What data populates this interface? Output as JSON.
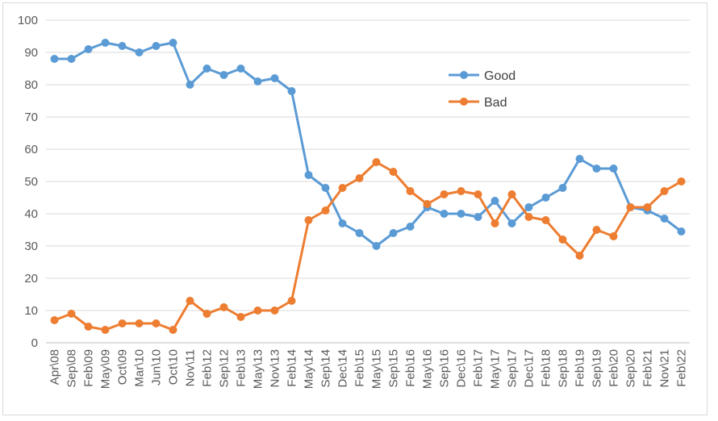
{
  "chart_data": {
    "type": "line",
    "title": "",
    "xlabel": "",
    "ylabel": "",
    "ylim": [
      0,
      100
    ],
    "ytick_step": 10,
    "grid": true,
    "legend_position": "upper-center-right",
    "categories": [
      "Apr\\08",
      "Sep\\08",
      "Feb\\09",
      "May\\09",
      "Oct\\09",
      "Mar\\10",
      "Jun\\10",
      "Oct\\10",
      "Nov\\11",
      "Feb\\12",
      "Sep\\12",
      "Feb\\13",
      "May\\13",
      "Nov\\13",
      "Feb\\14",
      "May\\14",
      "Sep\\14",
      "Dec\\14",
      "Feb\\15",
      "May\\15",
      "Sep\\15",
      "Feb\\16",
      "May\\16",
      "Sep\\16",
      "Dec\\16",
      "Feb\\17",
      "May\\17",
      "Sep\\17",
      "Dec\\17",
      "Feb\\18",
      "Sep\\18",
      "Feb\\19",
      "Sep\\19",
      "Feb\\20",
      "Sep\\20",
      "Feb\\21",
      "Nov\\21",
      "Feb\\22"
    ],
    "series": [
      {
        "name": "Good",
        "color": "#5b9bd5",
        "values": [
          88,
          88,
          91,
          93,
          92,
          90,
          92,
          93,
          80,
          85,
          83,
          85,
          81,
          82,
          78,
          52,
          48,
          37,
          34,
          30,
          34,
          36,
          42,
          40,
          40,
          39,
          44,
          37,
          42,
          45,
          48,
          57,
          54,
          54,
          42,
          41,
          38.5,
          34.5
        ]
      },
      {
        "name": "Bad",
        "color": "#ed7d31",
        "values": [
          7,
          9,
          5,
          4,
          6,
          6,
          6,
          4,
          13,
          9,
          11,
          8,
          10,
          10,
          13,
          38,
          41,
          48,
          51,
          56,
          53,
          47,
          43,
          46,
          47,
          46,
          37,
          46,
          39,
          38,
          32,
          27,
          35,
          33,
          42,
          42,
          47,
          50
        ]
      }
    ]
  }
}
